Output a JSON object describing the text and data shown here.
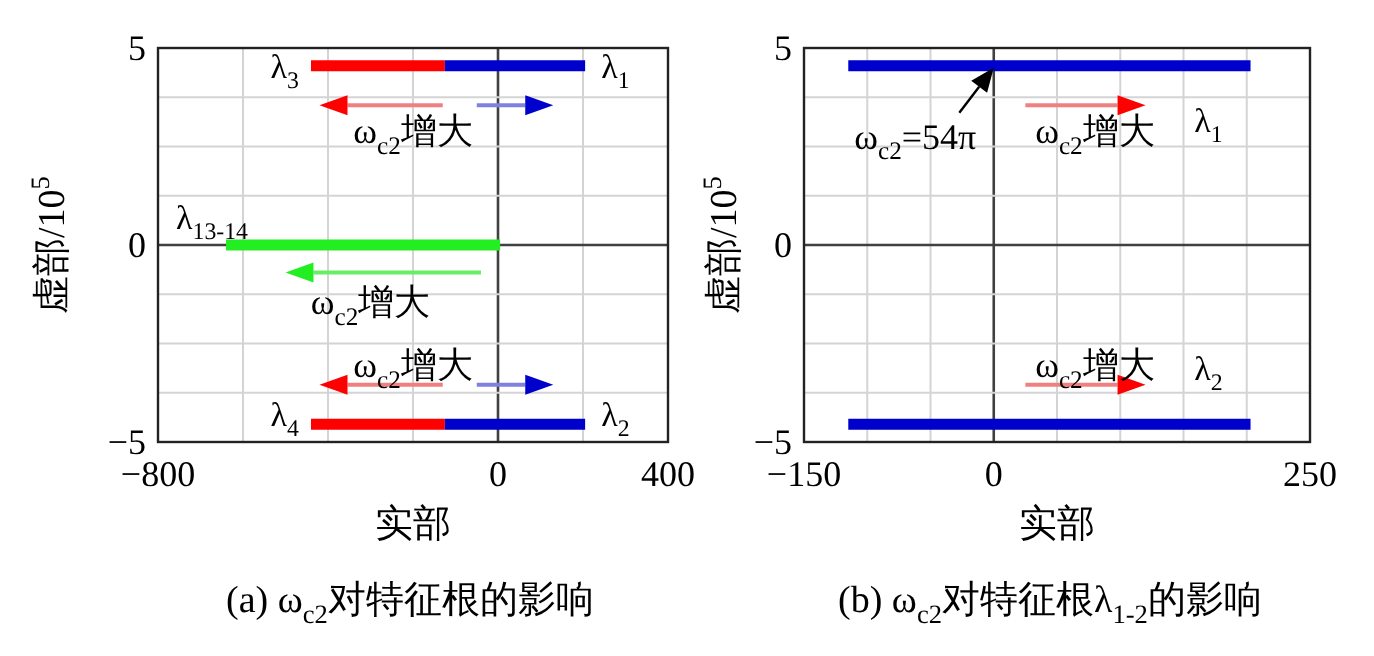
{
  "chart_data": [
    {
      "type": "line",
      "title": "(a) ω$_{c2}$对特征根的影响",
      "xlabel": "实部",
      "ylabel": "虚部/10$^{5}$",
      "xlim": [
        -800,
        400
      ],
      "xticks": [
        -800,
        {
          "value": -600,
          "label": null
        },
        {
          "value": -400,
          "label": null
        },
        {
          "value": -200,
          "label": null
        },
        0,
        {
          "value": 200,
          "label": null
        },
        400
      ],
      "ylim": [
        -5,
        5
      ],
      "yticks": [
        -5,
        {
          "value": -3.75,
          "label": null
        },
        {
          "value": -2.5,
          "label": null
        },
        {
          "value": -1.25,
          "label": null
        },
        0,
        {
          "value": 1.25,
          "label": null
        },
        {
          "value": 2.5,
          "label": null
        },
        {
          "value": 3.75,
          "label": null
        },
        5
      ],
      "grid": true,
      "series": [
        {
          "name": "λ$_{3}$",
          "color": "#ff0000",
          "x": [
            -440,
            -125
          ],
          "values": [
            4.55,
            4.55
          ]
        },
        {
          "name": "λ$_{1}$",
          "color": "#0000cc",
          "x": [
            -125,
            205
          ],
          "values": [
            4.55,
            4.55
          ]
        },
        {
          "name": "λ$_{13-14}$",
          "color": "#22ee22",
          "x": [
            -640,
            5
          ],
          "values": [
            0,
            0
          ]
        },
        {
          "name": "λ$_{4}$",
          "color": "#ff0000",
          "x": [
            -440,
            -125
          ],
          "values": [
            -4.55,
            -4.55
          ]
        },
        {
          "name": "λ$_{2}$",
          "color": "#0000cc",
          "x": [
            -125,
            205
          ],
          "values": [
            -4.55,
            -4.55
          ]
        }
      ],
      "annotations": [
        "ω$_{c2}$增大",
        "ω$_{c2}$增大",
        "ω$_{c2}$增大"
      ]
    },
    {
      "type": "line",
      "title": "(b) ω$_{c2}$对特征根λ$_{1-2}$的影响",
      "xlabel": "实部",
      "ylabel": "虚部/10$^{5}$",
      "xlim": [
        -150,
        250
      ],
      "xticks": [
        -150,
        {
          "value": -100,
          "label": null
        },
        {
          "value": -50,
          "label": null
        },
        0,
        {
          "value": 50,
          "label": null
        },
        {
          "value": 100,
          "label": null
        },
        {
          "value": 150,
          "label": null
        },
        {
          "value": 200,
          "label": null
        },
        250
      ],
      "ylim": [
        -5,
        5
      ],
      "yticks": [
        -5,
        {
          "value": -3.75,
          "label": null
        },
        {
          "value": -2.5,
          "label": null
        },
        {
          "value": -1.25,
          "label": null
        },
        0,
        {
          "value": 1.25,
          "label": null
        },
        {
          "value": 2.5,
          "label": null
        },
        {
          "value": 3.75,
          "label": null
        },
        5
      ],
      "grid": true,
      "series": [
        {
          "name": "λ$_{1}$",
          "color": "#0000cc",
          "x": [
            -115,
            203
          ],
          "values": [
            4.55,
            4.55
          ]
        },
        {
          "name": "λ$_{2}$",
          "color": "#0000cc",
          "x": [
            -115,
            203
          ],
          "values": [
            -4.55,
            -4.55
          ]
        }
      ],
      "annotations": [
        {
          "text": "ω$_{c2}$=54π",
          "x": 0,
          "y": 4.55
        },
        "ω$_{c2}$增大",
        "ω$_{c2}$增大"
      ]
    }
  ]
}
